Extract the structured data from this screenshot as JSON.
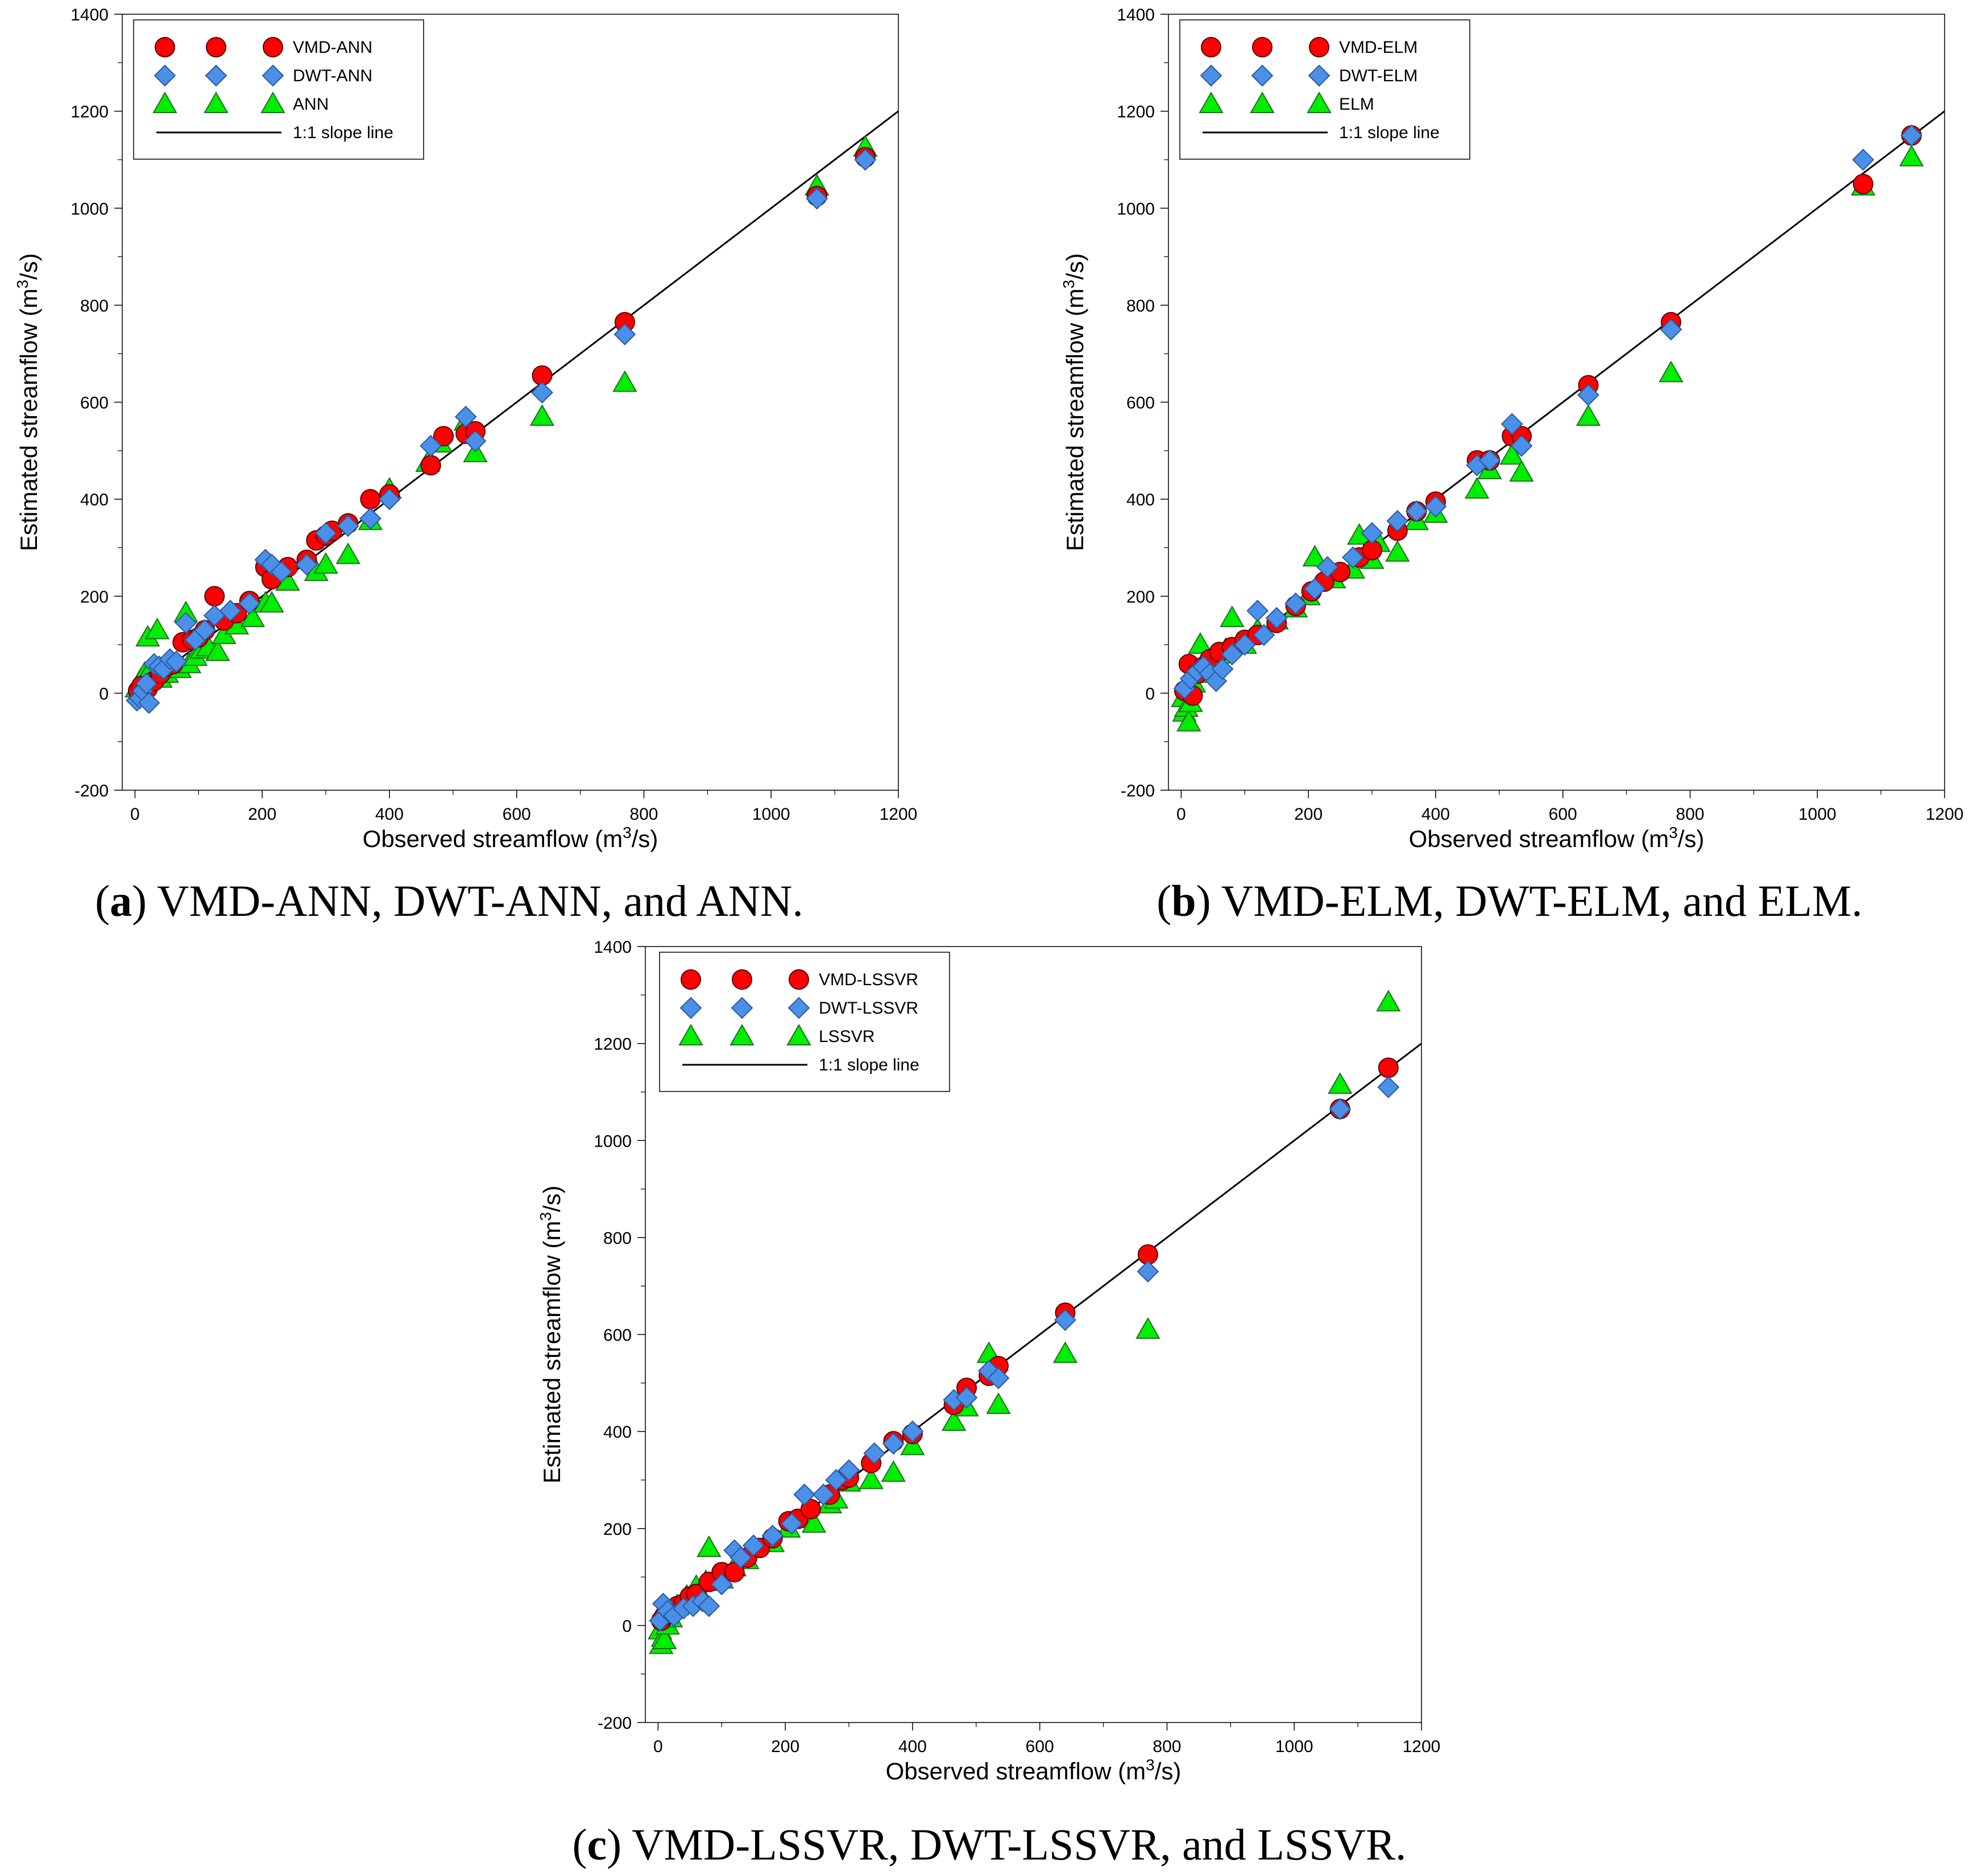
{
  "figure": {
    "colors": {
      "vmd": "#ff0000",
      "dwt": "#4a90e8",
      "base": "#00ee00",
      "line": "#000000"
    },
    "axis": {
      "xlabel_prefix": "Observed streamflow (m",
      "xlabel_sup": "3",
      "xlabel_suffix": "/s)",
      "ylabel_prefix": "Estimated streamflow (m",
      "ylabel_sup": "3",
      "ylabel_suffix": "/s)",
      "xticks": [
        "0",
        "200",
        "400",
        "600",
        "800",
        "1000",
        "1200"
      ],
      "yticks": [
        "-200",
        "0",
        "200",
        "400",
        "600",
        "800",
        "1000",
        "1200",
        "1400"
      ],
      "xlim": [
        -20,
        1200
      ],
      "ylim": [
        -200,
        1400
      ]
    }
  },
  "captions": [
    {
      "letter": "a",
      "text": " VMD-ANN, DWT-ANN, and ANN."
    },
    {
      "letter": "b",
      "text": " VMD-ELM, DWT-ELM, and ELM."
    },
    {
      "letter": "c",
      "text": " VMD-LSSVR, DWT-LSSVR, and LSSVR."
    }
  ],
  "chart_data": [
    {
      "type": "scatter",
      "title": "",
      "xlabel": "Observed streamflow (m3/s)",
      "ylabel": "Estimated streamflow (m3/s)",
      "xlim": [
        -20,
        1200
      ],
      "ylim": [
        -200,
        1400
      ],
      "legend_position": "top-left",
      "legend": [
        "VMD-ANN",
        "DWT-ANN",
        "ANN",
        "1:1 slope line"
      ],
      "reference_line": {
        "label": "1:1 slope line",
        "x": [
          0,
          1200
        ],
        "y": [
          0,
          1200
        ]
      },
      "series": [
        {
          "name": "VMD-ANN",
          "marker": "circle",
          "x": [
            5,
            10,
            20,
            30,
            40,
            50,
            60,
            75,
            90,
            100,
            110,
            125,
            140,
            160,
            180,
            205,
            215,
            240,
            270,
            285,
            300,
            310,
            335,
            370,
            400,
            465,
            485,
            520,
            535,
            640,
            770,
            1072,
            1148
          ],
          "y": [
            5,
            15,
            10,
            25,
            40,
            55,
            60,
            105,
            110,
            115,
            130,
            200,
            150,
            165,
            190,
            260,
            235,
            260,
            275,
            315,
            325,
            335,
            350,
            400,
            410,
            470,
            530,
            535,
            540,
            655,
            765,
            1025,
            1105
          ]
        },
        {
          "name": "DWT-ANN",
          "marker": "diamond",
          "x": [
            3,
            8,
            12,
            18,
            22,
            30,
            38,
            45,
            55,
            65,
            80,
            95,
            110,
            125,
            150,
            180,
            205,
            215,
            230,
            270,
            300,
            335,
            370,
            400,
            465,
            520,
            535,
            640,
            770,
            1072,
            1148
          ],
          "y": [
            -15,
            -10,
            5,
            20,
            -20,
            60,
            55,
            50,
            70,
            65,
            145,
            110,
            130,
            160,
            170,
            185,
            275,
            265,
            250,
            265,
            330,
            345,
            360,
            400,
            510,
            570,
            520,
            620,
            740,
            1020,
            1100
          ]
        },
        {
          "name": "ANN",
          "marker": "triangle",
          "x": [
            3,
            8,
            15,
            20,
            25,
            35,
            40,
            50,
            60,
            70,
            80,
            85,
            95,
            105,
            115,
            130,
            140,
            160,
            185,
            205,
            215,
            240,
            285,
            300,
            335,
            370,
            400,
            460,
            480,
            520,
            535,
            640,
            770,
            1072,
            1148
          ],
          "y": [
            10,
            25,
            40,
            115,
            50,
            130,
            30,
            40,
            55,
            50,
            165,
            60,
            75,
            90,
            95,
            85,
            120,
            140,
            155,
            185,
            185,
            230,
            250,
            265,
            285,
            355,
            420,
            475,
            515,
            560,
            495,
            570,
            640,
            1045,
            1125
          ]
        }
      ]
    },
    {
      "type": "scatter",
      "title": "",
      "xlabel": "Observed streamflow (m3/s)",
      "ylabel": "Estimated streamflow (m3/s)",
      "xlim": [
        -20,
        1200
      ],
      "ylim": [
        -200,
        1400
      ],
      "legend_position": "top-left",
      "legend": [
        "VMD-ELM",
        "DWT-ELM",
        "ELM",
        "1:1 slope line"
      ],
      "reference_line": {
        "label": "1:1 slope line",
        "x": [
          0,
          1200
        ],
        "y": [
          0,
          1200
        ]
      },
      "series": [
        {
          "name": "VMD-ELM",
          "marker": "circle",
          "x": [
            5,
            12,
            18,
            25,
            35,
            45,
            60,
            80,
            100,
            120,
            150,
            180,
            205,
            225,
            250,
            280,
            300,
            340,
            370,
            400,
            465,
            485,
            520,
            535,
            640,
            770,
            1072,
            1148
          ],
          "y": [
            5,
            60,
            -5,
            40,
            55,
            70,
            85,
            95,
            110,
            120,
            145,
            180,
            210,
            230,
            250,
            280,
            295,
            335,
            375,
            395,
            480,
            480,
            530,
            530,
            635,
            765,
            1050,
            1150
          ]
        },
        {
          "name": "DWT-ELM",
          "marker": "diamond",
          "x": [
            5,
            15,
            25,
            35,
            45,
            55,
            65,
            80,
            100,
            120,
            130,
            150,
            180,
            210,
            230,
            270,
            300,
            340,
            370,
            400,
            465,
            485,
            520,
            535,
            640,
            770,
            1072,
            1148
          ],
          "y": [
            10,
            30,
            45,
            55,
            40,
            25,
            50,
            80,
            100,
            170,
            120,
            155,
            185,
            215,
            260,
            280,
            330,
            355,
            375,
            385,
            470,
            480,
            555,
            510,
            615,
            750,
            1100,
            1150
          ]
        },
        {
          "name": "ELM",
          "marker": "triangle",
          "x": [
            3,
            5,
            8,
            12,
            15,
            20,
            30,
            40,
            50,
            60,
            70,
            80,
            100,
            120,
            150,
            180,
            200,
            210,
            240,
            270,
            280,
            300,
            310,
            340,
            370,
            400,
            465,
            485,
            520,
            535,
            640,
            770,
            1072,
            1148
          ],
          "y": [
            -10,
            -40,
            -30,
            -60,
            -20,
            20,
            100,
            60,
            40,
            80,
            90,
            155,
            100,
            130,
            150,
            175,
            200,
            280,
            235,
            255,
            325,
            275,
            310,
            290,
            355,
            370,
            420,
            460,
            490,
            455,
            570,
            660,
            1045,
            1105
          ]
        }
      ]
    },
    {
      "type": "scatter",
      "title": "",
      "xlabel": "Observed streamflow (m3/s)",
      "ylabel": "Estimated streamflow (m3/s)",
      "xlim": [
        -20,
        1200
      ],
      "ylim": [
        -200,
        1400
      ],
      "legend_position": "top-left",
      "legend": [
        "VMD-LSSVR",
        "DWT-LSSVR",
        "LSSVR",
        "1:1 slope line"
      ],
      "reference_line": {
        "label": "1:1 slope line",
        "x": [
          0,
          1200
        ],
        "y": [
          0,
          1200
        ]
      },
      "series": [
        {
          "name": "VMD-LSSVR",
          "marker": "circle",
          "x": [
            5,
            10,
            20,
            30,
            40,
            50,
            60,
            80,
            100,
            120,
            140,
            160,
            180,
            205,
            220,
            240,
            270,
            290,
            300,
            335,
            370,
            400,
            465,
            485,
            520,
            535,
            640,
            770,
            1072,
            1148
          ],
          "y": [
            10,
            20,
            25,
            40,
            45,
            60,
            65,
            90,
            110,
            110,
            140,
            160,
            180,
            215,
            220,
            240,
            270,
            300,
            305,
            335,
            380,
            395,
            455,
            490,
            515,
            535,
            645,
            765,
            1065,
            1150
          ]
        },
        {
          "name": "DWT-LSSVR",
          "marker": "diamond",
          "x": [
            3,
            8,
            15,
            25,
            40,
            55,
            70,
            80,
            100,
            120,
            130,
            150,
            180,
            210,
            230,
            260,
            280,
            300,
            340,
            370,
            400,
            465,
            485,
            520,
            535,
            640,
            770,
            1072,
            1148
          ],
          "y": [
            10,
            45,
            30,
            20,
            35,
            40,
            50,
            40,
            85,
            155,
            140,
            165,
            185,
            210,
            270,
            270,
            300,
            320,
            355,
            375,
            400,
            465,
            470,
            525,
            510,
            630,
            730,
            1065,
            1110
          ]
        },
        {
          "name": "LSSVR",
          "marker": "triangle",
          "x": [
            3,
            5,
            8,
            10,
            15,
            20,
            30,
            45,
            60,
            75,
            80,
            100,
            120,
            140,
            180,
            205,
            230,
            245,
            270,
            280,
            300,
            335,
            370,
            400,
            465,
            485,
            520,
            535,
            640,
            770,
            1072,
            1148
          ],
          "y": [
            -10,
            -40,
            -25,
            -30,
            0,
            15,
            40,
            60,
            80,
            90,
            160,
            95,
            120,
            135,
            170,
            200,
            220,
            210,
            250,
            260,
            295,
            300,
            315,
            370,
            420,
            450,
            560,
            455,
            560,
            610,
            1115,
            1285
          ]
        }
      ]
    }
  ]
}
